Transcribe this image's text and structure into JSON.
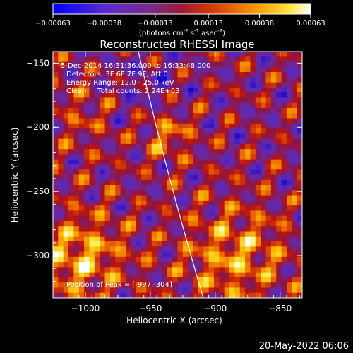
{
  "colorbar": {
    "ticks": [
      "-0.00063",
      "-0.00038",
      "-0.00013",
      "0.00013",
      "0.00038",
      "0.00063"
    ],
    "tick_values": [
      -0.00063,
      -0.00038,
      -0.00013,
      0.00013,
      0.00038,
      0.00063
    ],
    "range": [
      -0.00063,
      0.00063
    ],
    "units_prefix": "(photons cm",
    "units_exp1": "-2",
    "units_mid": " s",
    "units_exp2": "-1",
    "units_mid2": " asec",
    "units_exp3": "-2",
    "units_suffix": ")",
    "colors": [
      "#0000ff",
      "#6a1fbf",
      "#8a2a6f",
      "#b81414",
      "#f07a00",
      "#ffd400",
      "#ffffff"
    ]
  },
  "image": {
    "title": "Reconstructed RHESSI Image",
    "time_range": "5-Dec-2014 16:31:36.000 to 16:33:48.000",
    "detectors": "Detectors: 3F 6F 7F 9F, Att 0",
    "energy": "Energy Range: 12.0 - 25.0 keV",
    "algorithm": "Clean     Total counts: 1.24E+03",
    "peak": "Position of Peak = [-997,-304]",
    "xlabel": "Heliocentric X (arcsec)",
    "ylabel": "Heliocentric Y (arcsec)",
    "xlim": [
      -1025,
      -833
    ],
    "ylim": [
      -333,
      -141
    ],
    "xticks": [
      -1000,
      -950,
      -900,
      -850
    ],
    "xtick_labels": [
      "−1000",
      "−950",
      "−900",
      "−850"
    ],
    "yticks": [
      -150,
      -200,
      -250,
      -300
    ],
    "ytick_labels": [
      "−150",
      "−200",
      "−250",
      "−300"
    ],
    "limb_color": "#ffffff"
  },
  "datestamp": "20-May-2022 06:06"
}
